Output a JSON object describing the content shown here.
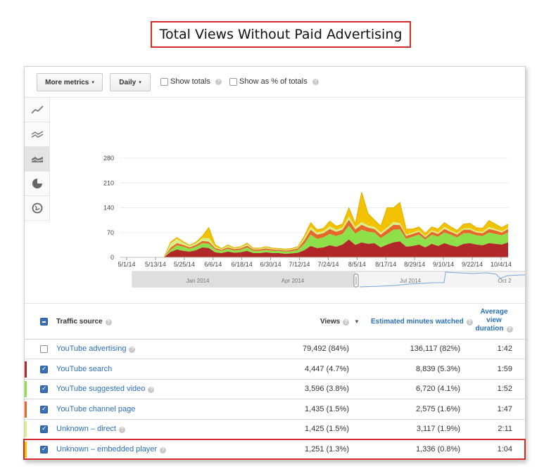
{
  "page_title": "Total Views Without Paid Advertising",
  "toolbar": {
    "more_metrics": "More metrics",
    "daily": "Daily",
    "show_totals": "Show totals",
    "show_pct": "Show as % of totals"
  },
  "side_icons": [
    "line-chart-icon",
    "multi-line-chart-icon",
    "stacked-area-chart-icon",
    "pie-chart-icon",
    "globe-map-icon"
  ],
  "chart_data": {
    "type": "area",
    "stacked": true,
    "y_ticks": [
      "280",
      "210",
      "140",
      "70",
      "0"
    ],
    "ylim": [
      0,
      280
    ],
    "x_ticks": [
      "5/1/14",
      "5/13/14",
      "5/25/14",
      "6/6/14",
      "6/18/14",
      "6/30/14",
      "7/12/14",
      "7/24/14",
      "8/5/14",
      "8/17/14",
      "8/29/14",
      "9/10/14",
      "9/22/14",
      "10/4/14"
    ],
    "colors": {
      "YouTube search": "#b22828",
      "YouTube suggested video": "#8ee04a",
      "YouTube channel page": "#e8682a",
      "Unknown – direct": "#d8ef8a",
      "Unknown – embedded player": "#f2c100"
    },
    "series": [
      {
        "name": "YouTube search",
        "values": [
          0,
          0,
          0,
          0,
          0,
          0,
          0,
          0,
          15,
          22,
          18,
          16,
          20,
          28,
          26,
          14,
          12,
          16,
          13,
          14,
          18,
          12,
          12,
          14,
          12,
          12,
          10,
          11,
          13,
          20,
          32,
          26,
          28,
          34,
          30,
          36,
          50,
          35,
          42,
          38,
          40,
          28,
          36,
          42,
          45,
          30,
          32,
          36,
          28,
          38,
          32,
          40,
          34,
          30,
          38,
          40,
          36,
          34,
          40,
          38,
          36,
          42
        ]
      },
      {
        "name": "YouTube suggested video",
        "values": [
          0,
          0,
          0,
          0,
          0,
          0,
          0,
          0,
          6,
          12,
          12,
          8,
          10,
          12,
          12,
          8,
          6,
          8,
          6,
          7,
          10,
          6,
          6,
          7,
          6,
          6,
          6,
          6,
          8,
          18,
          32,
          26,
          28,
          32,
          30,
          30,
          40,
          32,
          36,
          34,
          30,
          26,
          30,
          36,
          34,
          22,
          26,
          28,
          22,
          26,
          26,
          30,
          30,
          26,
          30,
          28,
          26,
          26,
          30,
          28,
          26,
          28
        ]
      },
      {
        "name": "YouTube channel page",
        "values": [
          0,
          0,
          0,
          0,
          0,
          0,
          0,
          0,
          6,
          6,
          5,
          4,
          5,
          6,
          6,
          4,
          3,
          4,
          4,
          4,
          5,
          4,
          4,
          4,
          4,
          3,
          3,
          4,
          4,
          10,
          14,
          12,
          12,
          14,
          12,
          12,
          16,
          12,
          14,
          12,
          10,
          10,
          12,
          14,
          12,
          8,
          8,
          8,
          6,
          8,
          8,
          10,
          8,
          8,
          10,
          10,
          8,
          8,
          10,
          10,
          8,
          10
        ]
      },
      {
        "name": "Unknown – direct",
        "values": [
          0,
          0,
          0,
          0,
          0,
          0,
          0,
          0,
          12,
          12,
          6,
          4,
          5,
          8,
          10,
          4,
          2,
          4,
          2,
          3,
          4,
          2,
          2,
          3,
          2,
          2,
          2,
          2,
          3,
          6,
          8,
          6,
          6,
          8,
          6,
          6,
          10,
          6,
          8,
          6,
          6,
          6,
          6,
          8,
          6,
          4,
          4,
          4,
          4,
          4,
          4,
          6,
          4,
          4,
          4,
          4,
          4,
          4,
          6,
          4,
          4,
          4
        ]
      },
      {
        "name": "Unknown – embedded player",
        "values": [
          0,
          0,
          0,
          0,
          0,
          0,
          0,
          0,
          4,
          4,
          3,
          2,
          3,
          6,
          30,
          6,
          2,
          3,
          2,
          2,
          3,
          2,
          2,
          2,
          2,
          2,
          2,
          2,
          2,
          6,
          12,
          8,
          8,
          14,
          10,
          10,
          24,
          10,
          84,
          34,
          20,
          18,
          56,
          40,
          58,
          16,
          10,
          10,
          8,
          10,
          10,
          12,
          10,
          8,
          12,
          14,
          10,
          10,
          18,
          14,
          10,
          10
        ]
      }
    ],
    "timeline": {
      "labels": [
        "Jan 2014",
        "Apr 2014",
        "Jul 2014",
        "Oct 2"
      ]
    }
  },
  "table": {
    "headers": {
      "source": "Traffic source",
      "views": "Views",
      "minutes": "Estimated minutes watched",
      "duration": "Average view duration"
    },
    "rows": [
      {
        "source": "YouTube advertising",
        "views": "79,492 (84%)",
        "minutes": "136,117 (82%)",
        "duration": "1:42",
        "checked": false,
        "color": ""
      },
      {
        "source": "YouTube search",
        "views": "4,447 (4.7%)",
        "minutes": "8,839 (5.3%)",
        "duration": "1:59",
        "checked": true,
        "color": "#b22828"
      },
      {
        "source": "YouTube suggested video",
        "views": "3,596 (3.8%)",
        "minutes": "6,720 (4.1%)",
        "duration": "1:52",
        "checked": true,
        "color": "#8ee04a"
      },
      {
        "source": "YouTube channel page",
        "views": "1,435 (1.5%)",
        "minutes": "2,575 (1.6%)",
        "duration": "1:47",
        "checked": true,
        "color": "#e8682a"
      },
      {
        "source": "Unknown – direct",
        "views": "1,425 (1.5%)",
        "minutes": "3,117 (1.9%)",
        "duration": "2:11",
        "checked": true,
        "color": "#d8ef8a"
      },
      {
        "source": "Unknown – embedded player",
        "views": "1,251 (1.3%)",
        "minutes": "1,336 (0.8%)",
        "duration": "1:04",
        "checked": true,
        "color": "#f2c100"
      }
    ]
  }
}
